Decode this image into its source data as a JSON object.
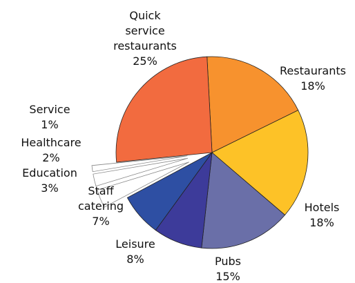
{
  "chart_data": {
    "type": "pie",
    "categories": [
      "Restaurants",
      "Hotels",
      "Pubs",
      "Leisure",
      "Staff catering",
      "Education",
      "Healthcare",
      "Service",
      "Quick service restaurants"
    ],
    "values": [
      18,
      18,
      15,
      8,
      7,
      3,
      2,
      1,
      25
    ],
    "value_labels": [
      "18%",
      "18%",
      "15%",
      "8%",
      "7%",
      "3%",
      "2%",
      "1%",
      "25%"
    ],
    "colors": [
      "#f7922e",
      "#fdc227",
      "#6a6fa8",
      "#3d3b9a",
      "#2e4fa3",
      "#ffffff",
      "#ffffff",
      "#ffffff",
      "#f26b3f"
    ],
    "exploded": [
      false,
      false,
      false,
      false,
      false,
      true,
      true,
      true,
      false
    ]
  }
}
